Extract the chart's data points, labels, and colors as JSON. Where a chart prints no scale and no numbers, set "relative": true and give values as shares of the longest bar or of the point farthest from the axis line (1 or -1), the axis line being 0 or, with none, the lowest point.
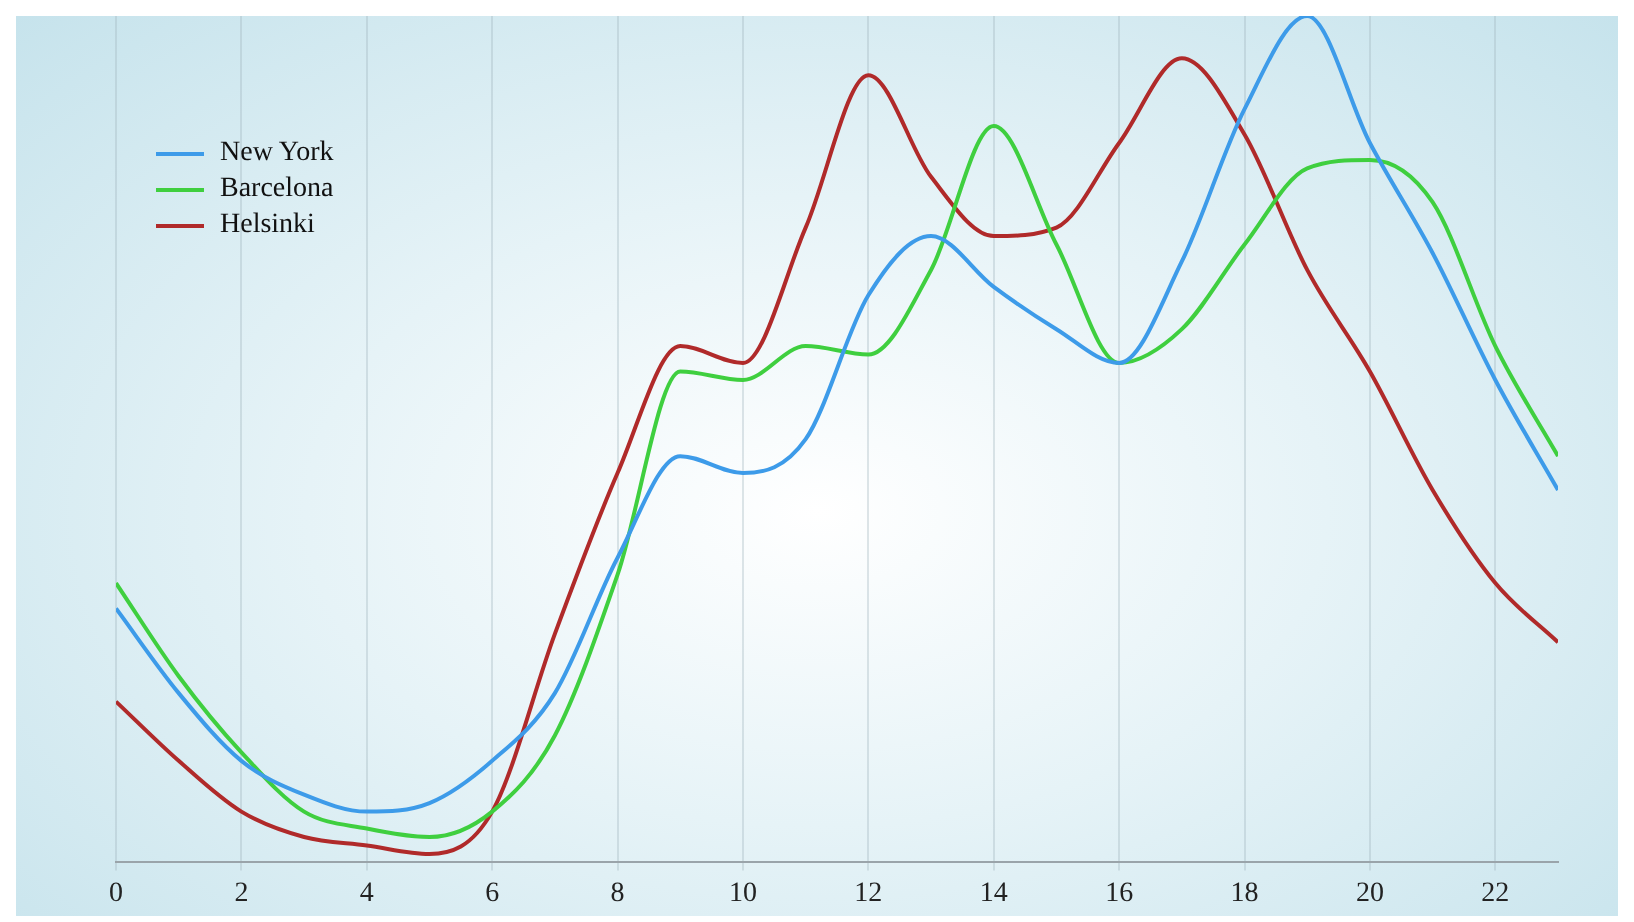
{
  "chart_data": {
    "type": "line",
    "relative": true,
    "x": [
      0,
      1,
      2,
      3,
      4,
      5,
      6,
      7,
      8,
      9,
      10,
      11,
      12,
      13,
      14,
      15,
      16,
      17,
      18,
      19,
      20,
      21,
      22,
      23
    ],
    "xlim": [
      0,
      23
    ],
    "xticks": [
      0,
      2,
      4,
      6,
      8,
      10,
      12,
      14,
      16,
      18,
      20,
      22
    ],
    "grid": "x",
    "legend": "top left",
    "marker": "none",
    "line_style": "solid",
    "series": [
      {
        "name": "New York",
        "color": "#3d9be9",
        "values": [
          0.3,
          0.2,
          0.12,
          0.08,
          0.06,
          0.07,
          0.12,
          0.2,
          0.36,
          0.48,
          0.46,
          0.5,
          0.67,
          0.74,
          0.68,
          0.63,
          0.59,
          0.71,
          0.89,
          1.0,
          0.85,
          0.72,
          0.57,
          0.44
        ]
      },
      {
        "name": "Barcelona",
        "color": "#3fcf3f",
        "values": [
          0.33,
          0.22,
          0.13,
          0.06,
          0.04,
          0.03,
          0.06,
          0.15,
          0.34,
          0.58,
          0.57,
          0.61,
          0.6,
          0.7,
          0.87,
          0.73,
          0.59,
          0.63,
          0.73,
          0.82,
          0.83,
          0.78,
          0.61,
          0.48
        ]
      },
      {
        "name": "Helsinki",
        "color": "#b02a2a",
        "values": [
          0.19,
          0.12,
          0.06,
          0.03,
          0.02,
          0.01,
          0.06,
          0.27,
          0.46,
          0.61,
          0.59,
          0.75,
          0.93,
          0.81,
          0.74,
          0.75,
          0.85,
          0.95,
          0.86,
          0.7,
          0.58,
          0.44,
          0.33,
          0.26
        ]
      }
    ]
  }
}
